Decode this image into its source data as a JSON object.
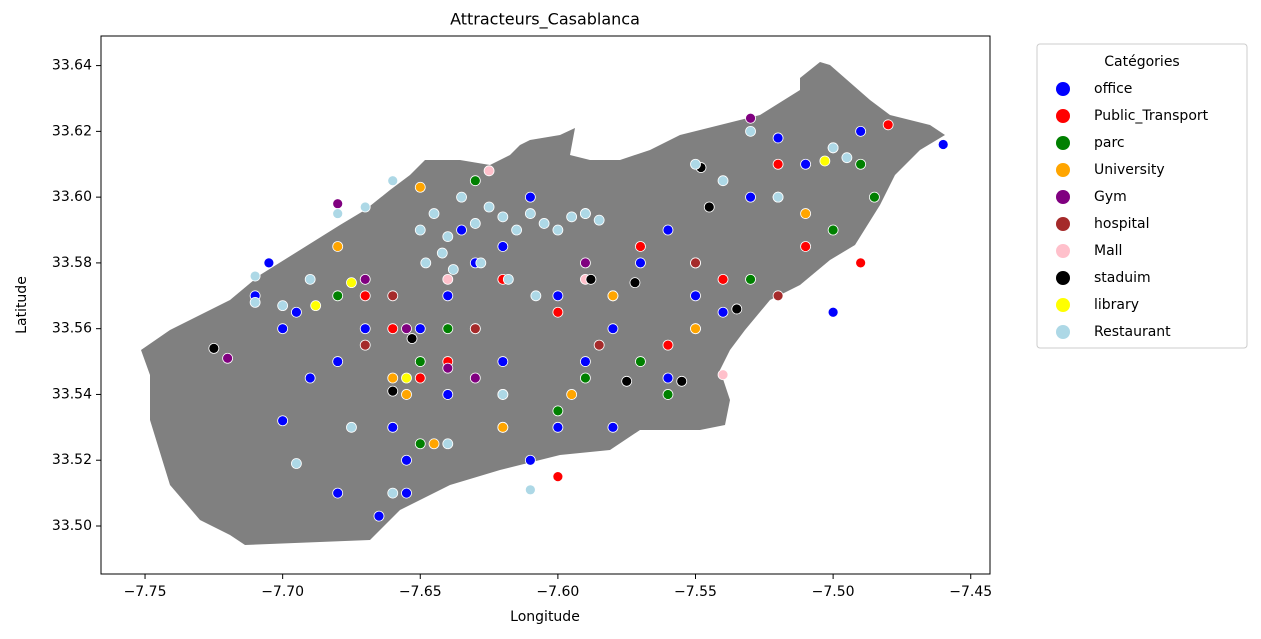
{
  "chart_data": {
    "type": "scatter",
    "title": "Attracteurs_Casablanca",
    "xlabel": "Longitude",
    "ylabel": "Latitude",
    "legend_title": "Catégories",
    "legend": "upper right outside",
    "xlim": [
      -7.766,
      -7.443
    ],
    "ylim": [
      33.4854,
      33.649
    ],
    "xticks": [
      {
        "value": -7.75,
        "label": "−7.75"
      },
      {
        "value": -7.7,
        "label": "−7.70"
      },
      {
        "value": -7.65,
        "label": "−7.65"
      },
      {
        "value": -7.6,
        "label": "−7.60"
      },
      {
        "value": -7.55,
        "label": "−7.55"
      },
      {
        "value": -7.5,
        "label": "−7.50"
      },
      {
        "value": -7.45,
        "label": "−7.45"
      }
    ],
    "yticks": [
      {
        "value": 33.5,
        "label": "33.50"
      },
      33.52,
      33.54,
      33.56,
      33.58,
      {
        "value": 33.6,
        "label": "33.60"
      },
      33.62,
      33.64
    ],
    "series": [
      {
        "name": "office",
        "color": "#0000ff",
        "x": [
          -7.7,
          -7.69,
          -7.68,
          -7.67,
          -7.66,
          -7.655,
          -7.65,
          -7.64,
          -7.635,
          -7.63,
          -7.62,
          -7.61,
          -7.6,
          -7.59,
          -7.58,
          -7.57,
          -7.56,
          -7.55,
          -7.54,
          -7.53,
          -7.52,
          -7.51,
          -7.5,
          -7.49,
          -7.46,
          -7.705,
          -7.7,
          -7.68,
          -7.665,
          -7.6,
          -7.58,
          -7.61,
          -7.71,
          -7.56,
          -7.62,
          -7.64,
          -7.695,
          -7.655
        ],
        "y": [
          33.56,
          33.545,
          33.55,
          33.56,
          33.53,
          33.52,
          33.56,
          33.57,
          33.59,
          33.58,
          33.585,
          33.6,
          33.57,
          33.55,
          33.56,
          33.58,
          33.59,
          33.57,
          33.565,
          33.6,
          33.618,
          33.61,
          33.565,
          33.62,
          33.616,
          33.58,
          33.532,
          33.51,
          33.503,
          33.53,
          33.53,
          33.52,
          33.57,
          33.545,
          33.55,
          33.54,
          33.565,
          33.51
        ]
      },
      {
        "name": "Public_Transport",
        "color": "#ff0000",
        "x": [
          -7.67,
          -7.66,
          -7.64,
          -7.62,
          -7.6,
          -7.58,
          -7.57,
          -7.55,
          -7.54,
          -7.52,
          -7.51,
          -7.49,
          -7.48,
          -7.6,
          -7.62,
          -7.56,
          -7.65
        ],
        "y": [
          33.57,
          33.56,
          33.55,
          33.575,
          33.565,
          33.57,
          33.585,
          33.58,
          33.575,
          33.61,
          33.585,
          33.58,
          33.622,
          33.515,
          33.53,
          33.555,
          33.545
        ]
      },
      {
        "name": "parc",
        "color": "#008000",
        "x": [
          -7.68,
          -7.65,
          -7.63,
          -7.62,
          -7.6,
          -7.59,
          -7.57,
          -7.56,
          -7.55,
          -7.53,
          -7.52,
          -7.5,
          -7.49,
          -7.485,
          -7.65,
          -7.64,
          -7.63,
          -7.59
        ],
        "y": [
          33.57,
          33.55,
          33.56,
          33.54,
          33.535,
          33.545,
          33.55,
          33.54,
          33.56,
          33.575,
          33.6,
          33.59,
          33.61,
          33.6,
          33.525,
          33.56,
          33.605,
          33.595
        ]
      },
      {
        "name": "University",
        "color": "#ffa500",
        "x": [
          -7.66,
          -7.655,
          -7.645,
          -7.62,
          -7.595,
          -7.58,
          -7.55,
          -7.5,
          -7.51,
          -7.65,
          -7.68
        ],
        "y": [
          33.545,
          33.54,
          33.525,
          33.53,
          33.54,
          33.57,
          33.56,
          33.615,
          33.595,
          33.603,
          33.585
        ]
      },
      {
        "name": "Gym",
        "color": "#800080",
        "x": [
          -7.72,
          -7.68,
          -7.67,
          -7.64,
          -7.63,
          -7.53,
          -7.655,
          -7.59
        ],
        "y": [
          33.551,
          33.598,
          33.575,
          33.548,
          33.545,
          33.624,
          33.56,
          33.58
        ]
      },
      {
        "name": "hospital",
        "color": "#a52a2a",
        "x": [
          -7.66,
          -7.63,
          -7.55,
          -7.52,
          -7.585,
          -7.67
        ],
        "y": [
          33.57,
          33.56,
          33.58,
          33.57,
          33.555,
          33.555
        ]
      },
      {
        "name": "Mall",
        "color": "#ffc0cb",
        "x": [
          -7.54,
          -7.625,
          -7.59,
          -7.64
        ],
        "y": [
          33.546,
          33.608,
          33.575,
          33.575
        ]
      },
      {
        "name": "staduim",
        "color": "#000000",
        "x": [
          -7.725,
          -7.66,
          -7.653,
          -7.588,
          -7.572,
          -7.548,
          -7.545,
          -7.535,
          -7.555,
          -7.575
        ],
        "y": [
          33.554,
          33.541,
          33.557,
          33.575,
          33.574,
          33.609,
          33.597,
          33.566,
          33.544,
          33.544
        ]
      },
      {
        "name": "library",
        "color": "#ffff00",
        "x": [
          -7.688,
          -7.503,
          -7.655,
          -7.675
        ],
        "y": [
          33.567,
          33.611,
          33.545,
          33.574
        ]
      },
      {
        "name": "Restaurant",
        "color": "#add8e6",
        "x": [
          -7.65,
          -7.645,
          -7.64,
          -7.635,
          -7.63,
          -7.625,
          -7.62,
          -7.615,
          -7.61,
          -7.605,
          -7.6,
          -7.595,
          -7.59,
          -7.585,
          -7.648,
          -7.642,
          -7.638,
          -7.628,
          -7.618,
          -7.608,
          -7.66,
          -7.67,
          -7.68,
          -7.69,
          -7.7,
          -7.71,
          -7.695,
          -7.675,
          -7.66,
          -7.55,
          -7.54,
          -7.52,
          -7.5,
          -7.53,
          -7.495,
          -7.71,
          -7.61,
          -7.62,
          -7.64
        ],
        "y": [
          33.59,
          33.595,
          33.588,
          33.6,
          33.592,
          33.597,
          33.594,
          33.59,
          33.595,
          33.592,
          33.59,
          33.594,
          33.595,
          33.593,
          33.58,
          33.583,
          33.578,
          33.58,
          33.575,
          33.57,
          33.605,
          33.597,
          33.595,
          33.575,
          33.567,
          33.568,
          33.519,
          33.53,
          33.51,
          33.61,
          33.605,
          33.6,
          33.615,
          33.62,
          33.612,
          33.576,
          33.511,
          33.54,
          33.525
        ]
      }
    ]
  }
}
